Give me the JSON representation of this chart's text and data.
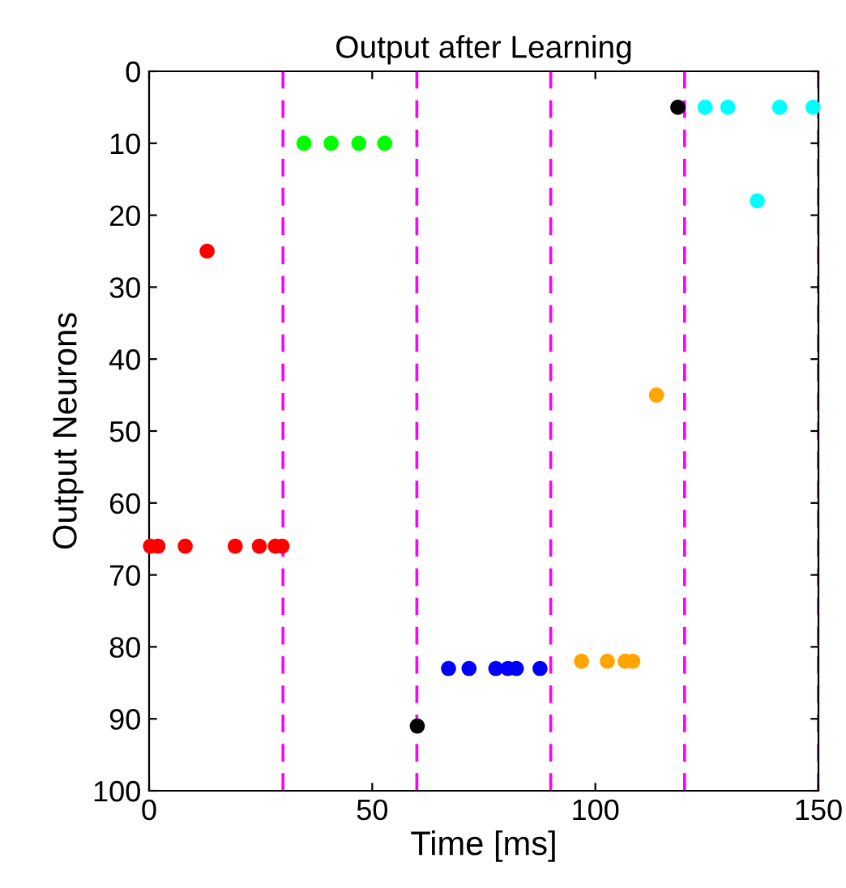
{
  "chart_data": {
    "type": "scatter",
    "title": "Output after Learning",
    "xlabel": "Time [ms]",
    "ylabel": "Output Neurons",
    "xlim": [
      0,
      150
    ],
    "xticks": [
      0,
      50,
      100,
      150
    ],
    "ylim": [
      100,
      0
    ],
    "yticks": [
      0,
      10,
      20,
      30,
      40,
      50,
      60,
      70,
      80,
      90,
      100
    ],
    "grid": false,
    "marker": "circle",
    "series": [
      {
        "color": "#ff0000",
        "x": [
          0.3,
          2.0,
          8.1,
          13.0,
          19.3,
          24.7,
          28.3,
          29.8
        ],
        "values": [
          66,
          66,
          66,
          25,
          66,
          66,
          66,
          66
        ]
      },
      {
        "color": "#00ff00",
        "x": [
          34.7,
          40.8,
          47,
          52.8
        ],
        "values": [
          10,
          10,
          10,
          10
        ]
      },
      {
        "color": "#000000",
        "x": [
          60.1,
          118.5
        ],
        "values": [
          91,
          5
        ]
      },
      {
        "color": "#0000ff",
        "x": [
          67.1,
          71.7,
          77.7,
          80.4,
          82.3,
          87.6
        ],
        "values": [
          83,
          83,
          83,
          83,
          83,
          83
        ]
      },
      {
        "color": "#ffa500",
        "x": [
          96.9,
          102.7,
          106.7,
          108.4,
          113.7
        ],
        "values": [
          82,
          82,
          82,
          82,
          45
        ]
      },
      {
        "color": "#00ffff",
        "x": [
          124.6,
          129.7,
          136.3,
          141.3,
          148.8
        ],
        "values": [
          5,
          5,
          18,
          5,
          5
        ]
      }
    ],
    "ref_lines": [
      {
        "axis": "x",
        "value": 30,
        "color": "#ff00ff",
        "line_style": "dashed"
      },
      {
        "axis": "x",
        "value": 60,
        "color": "#ff00ff",
        "line_style": "dashed"
      },
      {
        "axis": "x",
        "value": 90,
        "color": "#ff00ff",
        "line_style": "dashed"
      },
      {
        "axis": "x",
        "value": 120,
        "color": "#ff00ff",
        "line_style": "dashed"
      },
      {
        "axis": "x",
        "value": 150,
        "color": "#ff00ff",
        "line_style": "dashed"
      }
    ]
  }
}
